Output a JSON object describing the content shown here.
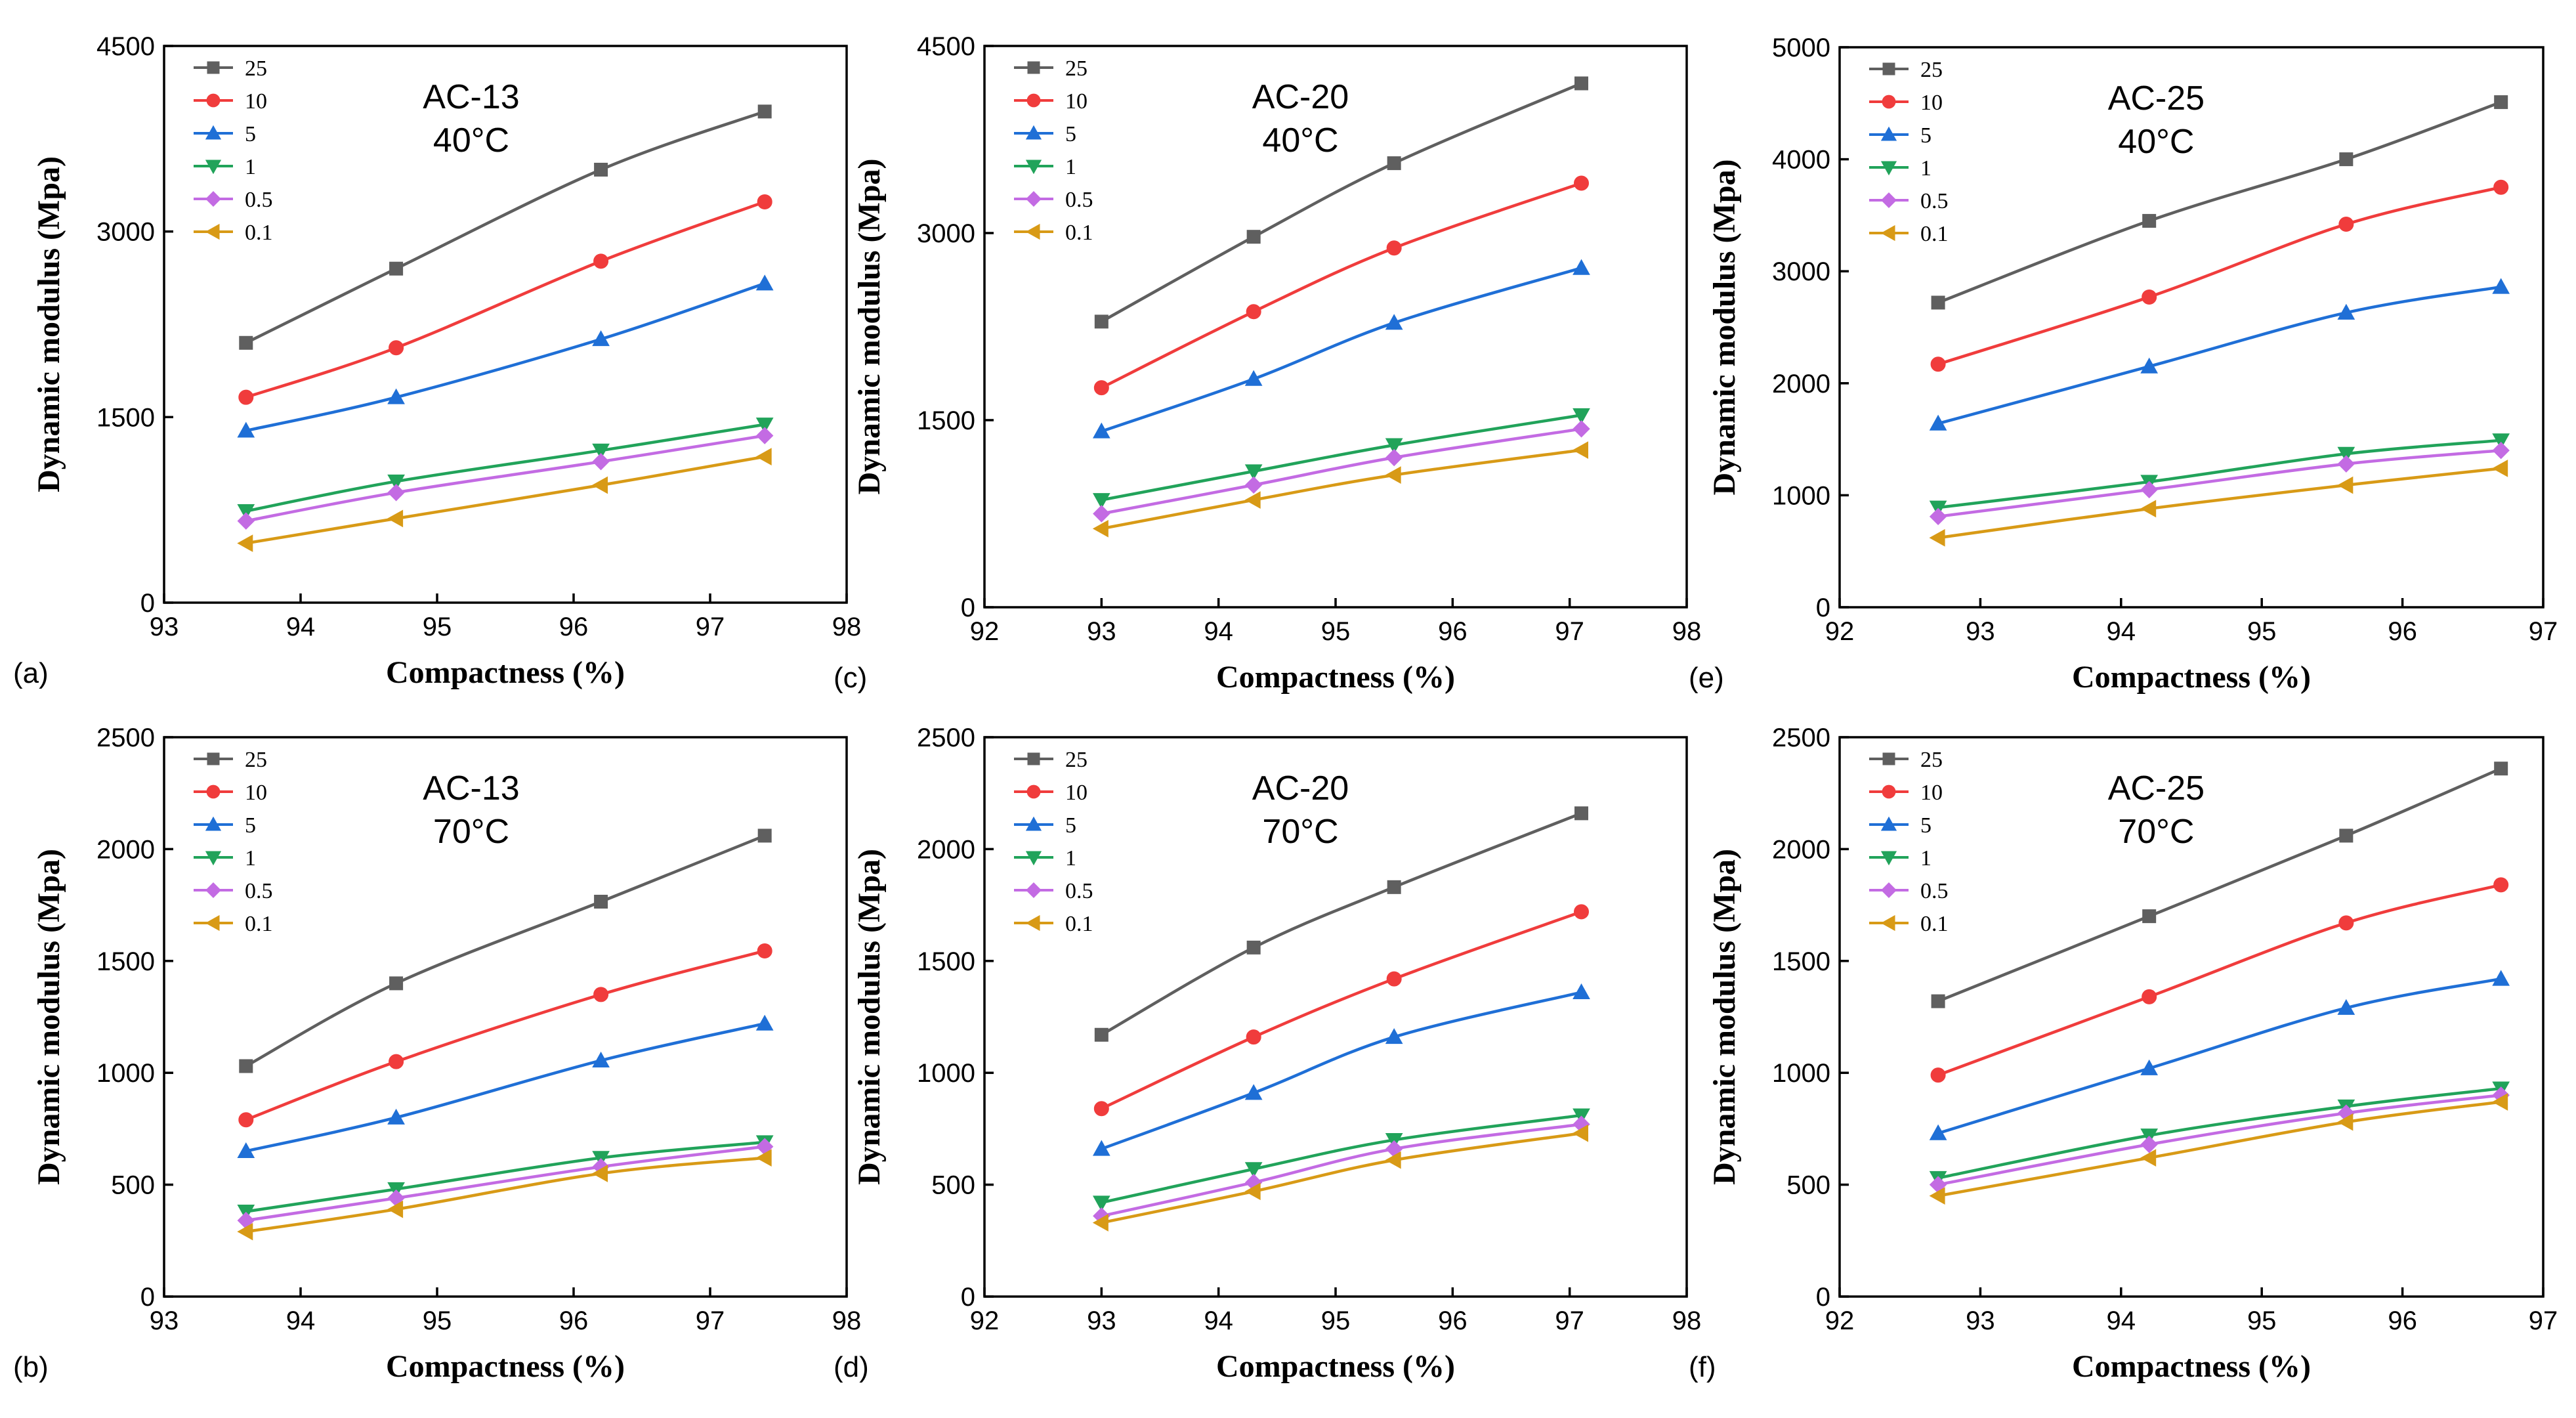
{
  "figure": {
    "series_colors": {
      "25": "#5f5f5f",
      "10": "#f03c3c",
      "5": "#1f6fd6",
      "1": "#21a35a",
      "0.5": "#c36be3",
      "0.1": "#d89a16"
    }
  },
  "chart_data": [
    {
      "id": "a",
      "type": "line",
      "panel_label": "(a)",
      "annotation": [
        "AC-13",
        "40°C"
      ],
      "xlabel": "Compactness (%)",
      "ylabel": "Dynamic modulus (Mpa)",
      "xlim": [
        93,
        98
      ],
      "ylim": [
        0,
        4500
      ],
      "xticks": [
        93,
        94,
        95,
        96,
        97,
        98
      ],
      "yticks": [
        0,
        1500,
        3000,
        4500
      ],
      "x": [
        93.6,
        94.7,
        96.2,
        97.4
      ],
      "series": [
        {
          "name": "25",
          "marker": "square",
          "values": [
            2100,
            2700,
            3500,
            3970
          ]
        },
        {
          "name": "10",
          "marker": "circle",
          "values": [
            1660,
            2060,
            2760,
            3240
          ]
        },
        {
          "name": "5",
          "marker": "triangle-up",
          "values": [
            1390,
            1660,
            2130,
            2580
          ]
        },
        {
          "name": "1",
          "marker": "triangle-down",
          "values": [
            740,
            980,
            1230,
            1440
          ]
        },
        {
          "name": "0.5",
          "marker": "diamond",
          "values": [
            660,
            890,
            1140,
            1350
          ]
        },
        {
          "name": "0.1",
          "marker": "triangle-left",
          "values": [
            480,
            680,
            950,
            1180
          ]
        }
      ]
    },
    {
      "id": "b",
      "type": "line",
      "panel_label": "(b)",
      "annotation": [
        "AC-13",
        "70°C"
      ],
      "xlabel": "Compactness (%)",
      "ylabel": "Dynamic modulus (Mpa)",
      "xlim": [
        93,
        98
      ],
      "ylim": [
        0,
        2500
      ],
      "xticks": [
        93,
        94,
        95,
        96,
        97,
        98
      ],
      "yticks": [
        0,
        500,
        1000,
        1500,
        2000,
        2500
      ],
      "x": [
        93.6,
        94.7,
        96.2,
        97.4
      ],
      "series": [
        {
          "name": "25",
          "marker": "square",
          "values": [
            1030,
            1400,
            1765,
            2060
          ]
        },
        {
          "name": "10",
          "marker": "circle",
          "values": [
            790,
            1050,
            1350,
            1545
          ]
        },
        {
          "name": "5",
          "marker": "triangle-up",
          "values": [
            650,
            800,
            1055,
            1220
          ]
        },
        {
          "name": "1",
          "marker": "triangle-down",
          "values": [
            380,
            480,
            620,
            690
          ]
        },
        {
          "name": "0.5",
          "marker": "diamond",
          "values": [
            340,
            440,
            580,
            670
          ]
        },
        {
          "name": "0.1",
          "marker": "triangle-left",
          "values": [
            290,
            390,
            550,
            620
          ]
        }
      ]
    },
    {
      "id": "c",
      "type": "line",
      "panel_label": "(c)",
      "annotation": [
        "AC-20",
        "40°C"
      ],
      "xlabel": "Compactness (%)",
      "ylabel": "Dynamic modulus (Mpa)",
      "xlim": [
        92,
        98
      ],
      "ylim": [
        0,
        4500
      ],
      "xticks": [
        92,
        93,
        94,
        95,
        96,
        97,
        98
      ],
      "yticks": [
        0,
        1500,
        3000,
        4500
      ],
      "x": [
        93.0,
        94.3,
        95.5,
        97.1
      ],
      "series": [
        {
          "name": "25",
          "marker": "square",
          "values": [
            2290,
            2970,
            3560,
            4200
          ]
        },
        {
          "name": "10",
          "marker": "circle",
          "values": [
            1760,
            2370,
            2880,
            3400
          ]
        },
        {
          "name": "5",
          "marker": "triangle-up",
          "values": [
            1410,
            1830,
            2280,
            2720
          ]
        },
        {
          "name": "1",
          "marker": "triangle-down",
          "values": [
            860,
            1090,
            1300,
            1540
          ]
        },
        {
          "name": "0.5",
          "marker": "diamond",
          "values": [
            750,
            980,
            1200,
            1430
          ]
        },
        {
          "name": "0.1",
          "marker": "triangle-left",
          "values": [
            630,
            860,
            1060,
            1260
          ]
        }
      ]
    },
    {
      "id": "d",
      "type": "line",
      "panel_label": "(d)",
      "annotation": [
        "AC-20",
        "70°C"
      ],
      "xlabel": "Compactness (%)",
      "ylabel": "Dynamic modulus (Mpa)",
      "xlim": [
        92,
        98
      ],
      "ylim": [
        0,
        2500
      ],
      "xticks": [
        92,
        93,
        94,
        95,
        96,
        97,
        98
      ],
      "yticks": [
        0,
        500,
        1000,
        1500,
        2000,
        2500
      ],
      "x": [
        93.0,
        94.3,
        95.5,
        97.1
      ],
      "series": [
        {
          "name": "25",
          "marker": "square",
          "values": [
            1170,
            1560,
            1830,
            2160
          ]
        },
        {
          "name": "10",
          "marker": "circle",
          "values": [
            840,
            1160,
            1420,
            1720
          ]
        },
        {
          "name": "5",
          "marker": "triangle-up",
          "values": [
            660,
            910,
            1160,
            1360
          ]
        },
        {
          "name": "1",
          "marker": "triangle-down",
          "values": [
            420,
            570,
            700,
            810
          ]
        },
        {
          "name": "0.5",
          "marker": "diamond",
          "values": [
            360,
            510,
            660,
            770
          ]
        },
        {
          "name": "0.1",
          "marker": "triangle-left",
          "values": [
            330,
            470,
            610,
            730
          ]
        }
      ]
    },
    {
      "id": "e",
      "type": "line",
      "panel_label": "(e)",
      "annotation": [
        "AC-25",
        "40°C"
      ],
      "xlabel": "Compactness (%)",
      "ylabel": "Dynamic modulus (Mpa)",
      "xlim": [
        92,
        97
      ],
      "ylim": [
        0,
        5000
      ],
      "xticks": [
        92,
        93,
        94,
        95,
        96,
        97
      ],
      "yticks": [
        0,
        1000,
        2000,
        3000,
        4000,
        5000
      ],
      "x": [
        92.7,
        94.2,
        95.6,
        96.7
      ],
      "series": [
        {
          "name": "25",
          "marker": "square",
          "values": [
            2720,
            3450,
            4000,
            4510
          ]
        },
        {
          "name": "10",
          "marker": "circle",
          "values": [
            2170,
            2770,
            3420,
            3750
          ]
        },
        {
          "name": "5",
          "marker": "triangle-up",
          "values": [
            1640,
            2150,
            2630,
            2860
          ]
        },
        {
          "name": "1",
          "marker": "triangle-down",
          "values": [
            890,
            1120,
            1370,
            1490
          ]
        },
        {
          "name": "0.5",
          "marker": "diamond",
          "values": [
            810,
            1050,
            1280,
            1400
          ]
        },
        {
          "name": "0.1",
          "marker": "triangle-left",
          "values": [
            620,
            880,
            1090,
            1240
          ]
        }
      ]
    },
    {
      "id": "f",
      "type": "line",
      "panel_label": "(f)",
      "annotation": [
        "AC-25",
        "70°C"
      ],
      "xlabel": "Compactness (%)",
      "ylabel": "Dynamic modulus (Mpa)",
      "xlim": [
        92,
        97
      ],
      "ylim": [
        0,
        2500
      ],
      "xticks": [
        92,
        93,
        94,
        95,
        96,
        97
      ],
      "yticks": [
        0,
        500,
        1000,
        1500,
        2000,
        2500
      ],
      "x": [
        92.7,
        94.2,
        95.6,
        96.7
      ],
      "series": [
        {
          "name": "25",
          "marker": "square",
          "values": [
            1320,
            1700,
            2060,
            2360
          ]
        },
        {
          "name": "10",
          "marker": "circle",
          "values": [
            990,
            1340,
            1670,
            1840
          ]
        },
        {
          "name": "5",
          "marker": "triangle-up",
          "values": [
            730,
            1020,
            1290,
            1420
          ]
        },
        {
          "name": "1",
          "marker": "triangle-down",
          "values": [
            530,
            720,
            850,
            930
          ]
        },
        {
          "name": "0.5",
          "marker": "diamond",
          "values": [
            500,
            680,
            820,
            900
          ]
        },
        {
          "name": "0.1",
          "marker": "triangle-left",
          "values": [
            450,
            620,
            780,
            870
          ]
        }
      ]
    }
  ]
}
